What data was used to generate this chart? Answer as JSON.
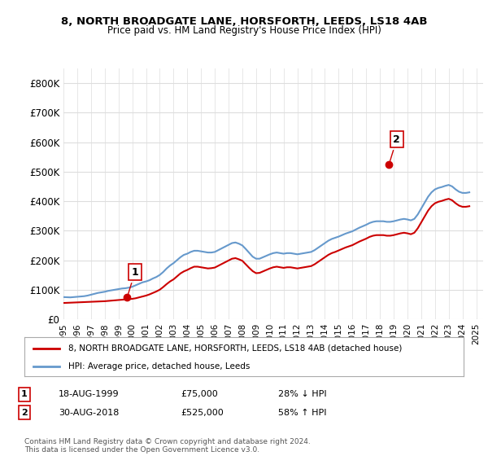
{
  "title_line1": "8, NORTH BROADGATE LANE, HORSFORTH, LEEDS, LS18 4AB",
  "title_line2": "Price paid vs. HM Land Registry's House Price Index (HPI)",
  "ylabel_ticks": [
    "£0",
    "£100K",
    "£200K",
    "£300K",
    "£400K",
    "£500K",
    "£600K",
    "£700K",
    "£800K"
  ],
  "ytick_values": [
    0,
    100000,
    200000,
    300000,
    400000,
    500000,
    600000,
    700000,
    800000
  ],
  "ylim": [
    0,
    850000
  ],
  "xlim_start": 1995.0,
  "xlim_end": 2025.5,
  "hpi_color": "#6699cc",
  "price_color": "#cc0000",
  "sale1_x": 1999.637,
  "sale1_y": 75000,
  "sale2_x": 2018.662,
  "sale2_y": 525000,
  "legend_label1": "8, NORTH BROADGATE LANE, HORSFORTH, LEEDS, LS18 4AB (detached house)",
  "legend_label2": "HPI: Average price, detached house, Leeds",
  "annotation1_label": "1",
  "annotation2_label": "2",
  "table_row1": [
    "1",
    "18-AUG-1999",
    "£75,000",
    "28% ↓ HPI"
  ],
  "table_row2": [
    "2",
    "30-AUG-2018",
    "£525,000",
    "58% ↑ HPI"
  ],
  "footer": "Contains HM Land Registry data © Crown copyright and database right 2024.\nThis data is licensed under the Open Government Licence v3.0.",
  "background_color": "#ffffff",
  "grid_color": "#dddddd",
  "hpi_data_x": [
    1995.0,
    1995.25,
    1995.5,
    1995.75,
    1996.0,
    1996.25,
    1996.5,
    1996.75,
    1997.0,
    1997.25,
    1997.5,
    1997.75,
    1998.0,
    1998.25,
    1998.5,
    1998.75,
    1999.0,
    1999.25,
    1999.5,
    1999.75,
    2000.0,
    2000.25,
    2000.5,
    2000.75,
    2001.0,
    2001.25,
    2001.5,
    2001.75,
    2002.0,
    2002.25,
    2002.5,
    2002.75,
    2003.0,
    2003.25,
    2003.5,
    2003.75,
    2004.0,
    2004.25,
    2004.5,
    2004.75,
    2005.0,
    2005.25,
    2005.5,
    2005.75,
    2006.0,
    2006.25,
    2006.5,
    2006.75,
    2007.0,
    2007.25,
    2007.5,
    2007.75,
    2008.0,
    2008.25,
    2008.5,
    2008.75,
    2009.0,
    2009.25,
    2009.5,
    2009.75,
    2010.0,
    2010.25,
    2010.5,
    2010.75,
    2011.0,
    2011.25,
    2011.5,
    2011.75,
    2012.0,
    2012.25,
    2012.5,
    2012.75,
    2013.0,
    2013.25,
    2013.5,
    2013.75,
    2014.0,
    2014.25,
    2014.5,
    2014.75,
    2015.0,
    2015.25,
    2015.5,
    2015.75,
    2016.0,
    2016.25,
    2016.5,
    2016.75,
    2017.0,
    2017.25,
    2017.5,
    2017.75,
    2018.0,
    2018.25,
    2018.5,
    2018.75,
    2019.0,
    2019.25,
    2019.5,
    2019.75,
    2020.0,
    2020.25,
    2020.5,
    2020.75,
    2021.0,
    2021.25,
    2021.5,
    2021.75,
    2022.0,
    2022.25,
    2022.5,
    2022.75,
    2023.0,
    2023.25,
    2023.5,
    2023.75,
    2024.0,
    2024.25,
    2024.5
  ],
  "hpi_data_y": [
    75000,
    74500,
    74000,
    75000,
    76000,
    77000,
    78000,
    80000,
    83000,
    86000,
    89000,
    91000,
    93000,
    96000,
    98000,
    100000,
    102000,
    104000,
    105000,
    107000,
    110000,
    115000,
    120000,
    125000,
    128000,
    132000,
    138000,
    143000,
    150000,
    160000,
    172000,
    182000,
    190000,
    200000,
    210000,
    218000,
    222000,
    228000,
    232000,
    232000,
    230000,
    228000,
    226000,
    226000,
    228000,
    234000,
    240000,
    246000,
    252000,
    258000,
    260000,
    256000,
    250000,
    238000,
    225000,
    212000,
    205000,
    205000,
    210000,
    215000,
    220000,
    224000,
    226000,
    224000,
    222000,
    224000,
    224000,
    222000,
    220000,
    222000,
    224000,
    226000,
    228000,
    234000,
    242000,
    250000,
    258000,
    266000,
    272000,
    276000,
    280000,
    285000,
    290000,
    294000,
    298000,
    304000,
    310000,
    315000,
    320000,
    326000,
    330000,
    332000,
    332000,
    332000,
    330000,
    330000,
    332000,
    335000,
    338000,
    340000,
    338000,
    335000,
    340000,
    355000,
    375000,
    395000,
    415000,
    430000,
    440000,
    445000,
    448000,
    452000,
    455000,
    450000,
    440000,
    432000,
    428000,
    428000,
    430000
  ],
  "price_data_x": [
    1995.0,
    1995.25,
    1995.5,
    1995.75,
    1996.0,
    1996.25,
    1996.5,
    1996.75,
    1997.0,
    1997.25,
    1997.5,
    1997.75,
    1998.0,
    1998.25,
    1998.5,
    1998.75,
    1999.0,
    1999.25,
    1999.5,
    1999.75,
    2000.0,
    2000.25,
    2000.5,
    2000.75,
    2001.0,
    2001.25,
    2001.5,
    2001.75,
    2002.0,
    2002.25,
    2002.5,
    2002.75,
    2003.0,
    2003.25,
    2003.5,
    2003.75,
    2004.0,
    2004.25,
    2004.5,
    2004.75,
    2005.0,
    2005.25,
    2005.5,
    2005.75,
    2006.0,
    2006.25,
    2006.5,
    2006.75,
    2007.0,
    2007.25,
    2007.5,
    2007.75,
    2008.0,
    2008.25,
    2008.5,
    2008.75,
    2009.0,
    2009.25,
    2009.5,
    2009.75,
    2010.0,
    2010.25,
    2010.5,
    2010.75,
    2011.0,
    2011.25,
    2011.5,
    2011.75,
    2012.0,
    2012.25,
    2012.5,
    2012.75,
    2013.0,
    2013.25,
    2013.5,
    2013.75,
    2014.0,
    2014.25,
    2014.5,
    2014.75,
    2015.0,
    2015.25,
    2015.5,
    2015.75,
    2016.0,
    2016.25,
    2016.5,
    2016.75,
    2017.0,
    2017.25,
    2017.5,
    2017.75,
    2018.0,
    2018.25,
    2018.5,
    2018.75,
    2019.0,
    2019.25,
    2019.5,
    2019.75,
    2020.0,
    2020.25,
    2020.5,
    2020.75,
    2021.0,
    2021.25,
    2021.5,
    2021.75,
    2022.0,
    2022.25,
    2022.5,
    2022.75,
    2023.0,
    2023.25,
    2023.5,
    2023.75,
    2024.0,
    2024.25,
    2024.5
  ],
  "price_data_y": [
    55000,
    55500,
    56000,
    56500,
    57000,
    57500,
    58000,
    58500,
    59000,
    59500,
    60000,
    60500,
    61000,
    62000,
    63000,
    64000,
    65000,
    66000,
    67000,
    68000,
    69000,
    71000,
    74000,
    77000,
    80000,
    84000,
    89000,
    94000,
    100000,
    109000,
    119000,
    128000,
    135000,
    145000,
    155000,
    162000,
    167000,
    173000,
    178000,
    178000,
    176000,
    174000,
    172000,
    173000,
    175000,
    181000,
    187000,
    193000,
    199000,
    205000,
    207000,
    203000,
    198000,
    186000,
    174000,
    163000,
    156000,
    157000,
    162000,
    167000,
    172000,
    176000,
    178000,
    176000,
    174000,
    176000,
    176000,
    174000,
    172000,
    174000,
    176000,
    178000,
    180000,
    186000,
    194000,
    202000,
    210000,
    218000,
    224000,
    228000,
    233000,
    238000,
    243000,
    247000,
    251000,
    257000,
    263000,
    268000,
    273000,
    279000,
    283000,
    285000,
    285000,
    285000,
    283000,
    283000,
    285000,
    288000,
    291000,
    293000,
    291000,
    288000,
    293000,
    308000,
    328000,
    348000,
    368000,
    383000,
    393000,
    398000,
    401000,
    405000,
    408000,
    403000,
    393000,
    385000,
    381000,
    381000,
    383000
  ]
}
